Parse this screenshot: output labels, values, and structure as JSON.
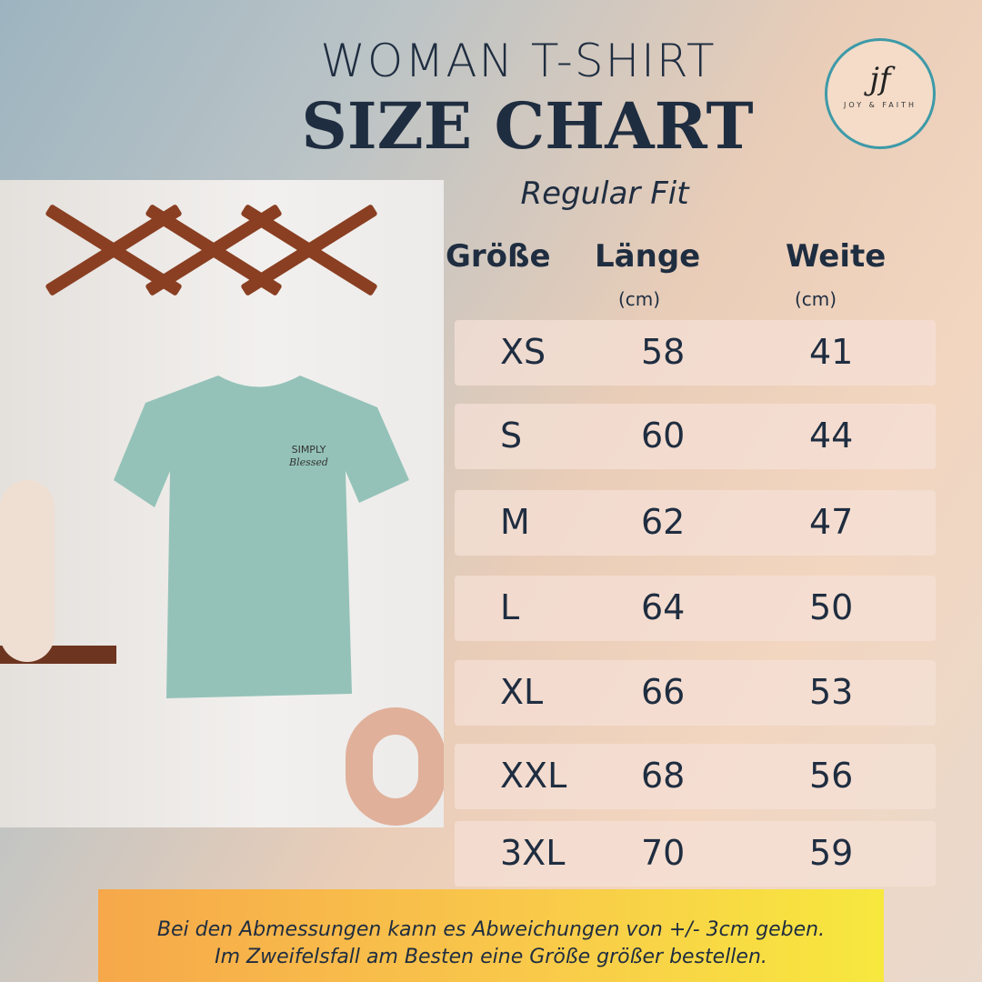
{
  "header": {
    "line1": "WOMAN T-SHIRT",
    "line2": "SIZE CHART",
    "fit": "Regular Fit"
  },
  "logo": {
    "monogram": "jf",
    "name": "JOY & FAITH",
    "ring_color": "#3e9aa8"
  },
  "photo": {
    "shirt_print": [
      "SIMPLY",
      "Blessed"
    ],
    "shirt_color": "#94c2b8"
  },
  "table": {
    "columns": [
      {
        "label": "Größe",
        "unit": ""
      },
      {
        "label": "Länge",
        "unit": "(cm)"
      },
      {
        "label": "Weite",
        "unit": "(cm)"
      }
    ],
    "rows": [
      [
        "XS",
        "58",
        "41"
      ],
      [
        "S",
        "60",
        "44"
      ],
      [
        "M",
        "62",
        "47"
      ],
      [
        "L",
        "64",
        "50"
      ],
      [
        "XL",
        "66",
        "53"
      ],
      [
        "XXL",
        "68",
        "56"
      ],
      [
        "3XL",
        "70",
        "59"
      ]
    ]
  },
  "note": {
    "line1": "Bei den Abmessungen kann es Abweichungen von +/- 3cm geben.",
    "line2": "Im Zweifelsfall am Besten eine Größe größer bestellen."
  }
}
